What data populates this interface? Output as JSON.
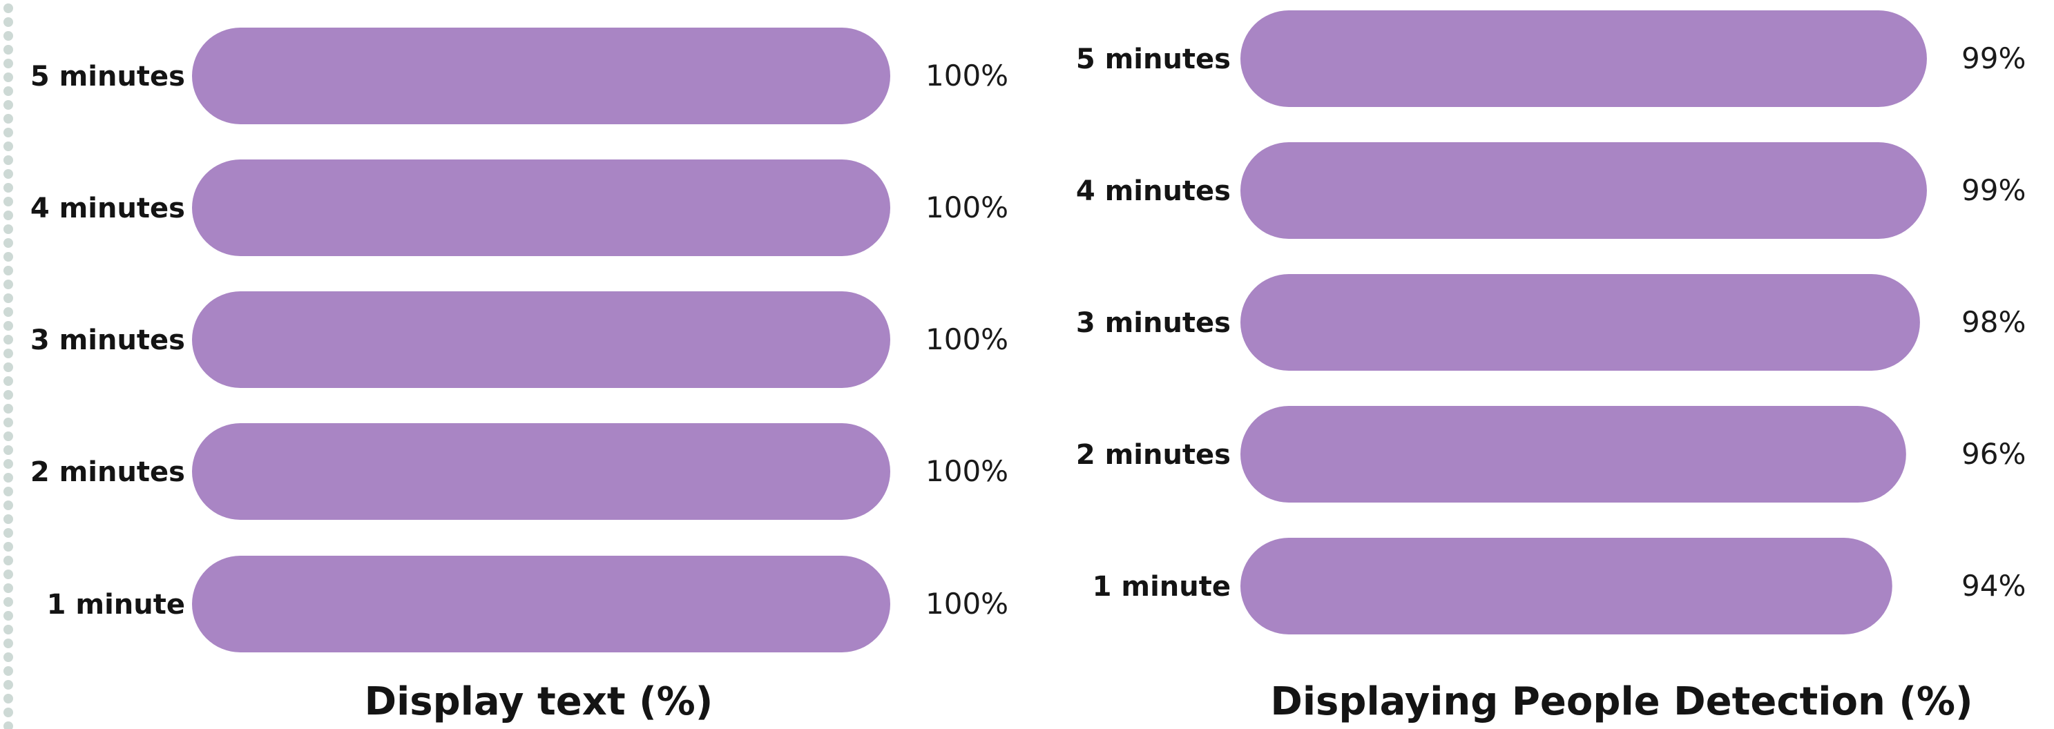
{
  "colors": {
    "bar": "#a985c4",
    "dots": "#cdd9d5"
  },
  "chart_data": [
    {
      "type": "bar",
      "orientation": "horizontal",
      "title": "Display text (%)",
      "categories": [
        "5 minutes",
        "4 minutes",
        "3 minutes",
        "2 minutes",
        "1 minute"
      ],
      "values": [
        100,
        100,
        100,
        100,
        100
      ],
      "value_labels": [
        "100%",
        "100%",
        "100%",
        "100%",
        "100%"
      ],
      "xlim": [
        0,
        100
      ],
      "grid": false,
      "legend": "none"
    },
    {
      "type": "bar",
      "orientation": "horizontal",
      "title": "Displaying People Detection (%)",
      "categories": [
        "5 minutes",
        "4 minutes",
        "3 minutes",
        "2 minutes",
        "1 minute"
      ],
      "values": [
        99,
        99,
        98,
        96,
        94
      ],
      "value_labels": [
        "99%",
        "99%",
        "98%",
        "96%",
        "94%"
      ],
      "xlim": [
        0,
        100
      ],
      "grid": false,
      "legend": "none"
    }
  ]
}
